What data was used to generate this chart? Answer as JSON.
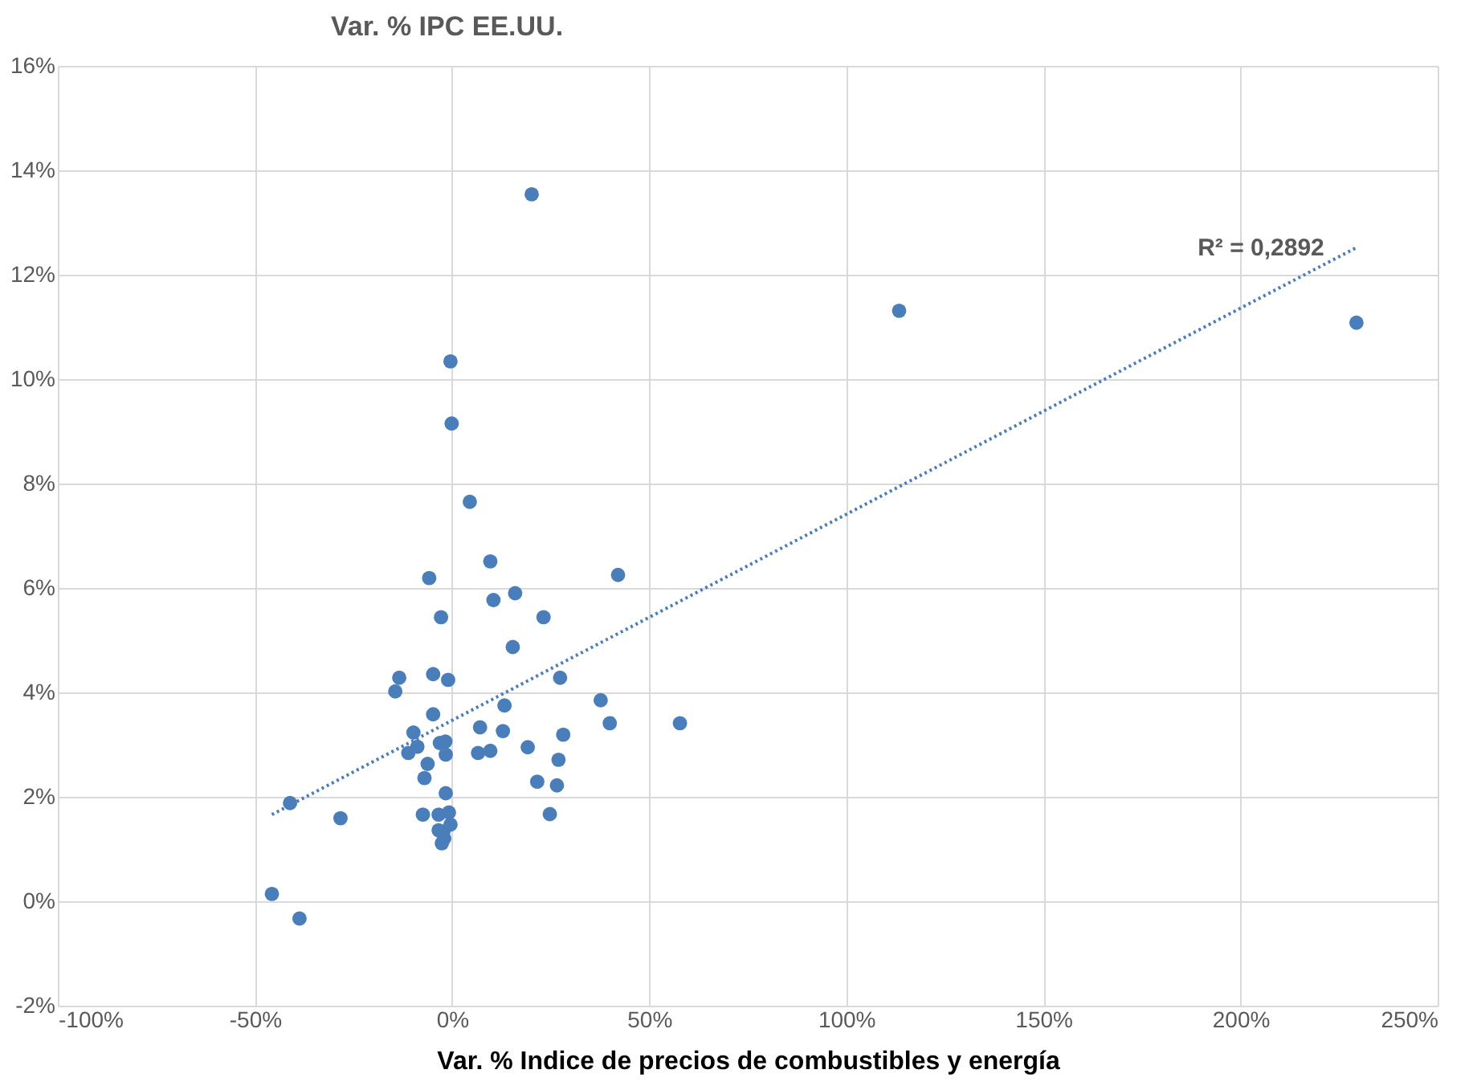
{
  "chart_data": {
    "type": "scatter",
    "title": "Var. % IPC EE.UU.",
    "xlabel": "Var. % Indice de precios de combustibles y energía",
    "xlim": [
      -100,
      250
    ],
    "xticks": [
      {
        "value": -100,
        "label": "-100%"
      },
      {
        "value": -50,
        "label": "-50%"
      },
      {
        "value": 0,
        "label": "0%"
      },
      {
        "value": 50,
        "label": "50%"
      },
      {
        "value": 100,
        "label": "100%"
      },
      {
        "value": 150,
        "label": "150%"
      },
      {
        "value": 200,
        "label": "200%"
      },
      {
        "value": 250,
        "label": "250%"
      }
    ],
    "ylim": [
      -2,
      16
    ],
    "yticks": [
      {
        "value": -2,
        "label": "-2%"
      },
      {
        "value": 0,
        "label": "0%"
      },
      {
        "value": 2,
        "label": "2%"
      },
      {
        "value": 4,
        "label": "4%"
      },
      {
        "value": 6,
        "label": "6%"
      },
      {
        "value": 8,
        "label": "8%"
      },
      {
        "value": 10,
        "label": "10%"
      },
      {
        "value": 12,
        "label": "12%"
      },
      {
        "value": 14,
        "label": "14%"
      },
      {
        "value": 16,
        "label": "16%"
      }
    ],
    "grid": true,
    "legend": false,
    "series": [
      {
        "color": "#4a7ebb",
        "marker": "circle",
        "x": [
          -5.8,
          9.7,
          42.1,
          10.5,
          16.0,
          23.2,
          -2.8,
          15.4,
          -13.4,
          -14.4,
          -4.8,
          -1.0,
          27.4,
          13.3,
          37.7,
          40.0,
          57.8,
          -4.8,
          -9.8,
          -8.8,
          -11.1,
          -3.1,
          -1.7,
          -1.6,
          7.1,
          12.9,
          28.2,
          6.6,
          9.7,
          19.2,
          27.0,
          -6.2,
          -7.0,
          21.6,
          26.6,
          -1.6,
          -7.4,
          24.8,
          -3.4,
          -0.8,
          -0.4,
          -3.4,
          -2.2,
          -2.6,
          -2.0,
          -28.3,
          -41.1,
          -45.7,
          -38.7,
          20.2,
          -0.4,
          -0.1,
          4.5,
          113.4,
          229.4
        ],
        "values": [
          6.19,
          6.51,
          6.25,
          5.77,
          5.9,
          5.44,
          5.44,
          4.87,
          4.28,
          4.02,
          4.35,
          4.24,
          4.28,
          3.75,
          3.85,
          3.41,
          3.41,
          3.58,
          3.23,
          2.96,
          2.84,
          3.03,
          3.06,
          2.81,
          3.33,
          3.26,
          3.19,
          2.84,
          2.88,
          2.95,
          2.71,
          2.63,
          2.36,
          2.29,
          2.22,
          2.07,
          1.66,
          1.67,
          1.66,
          1.7,
          1.47,
          1.36,
          1.33,
          1.11,
          1.2,
          1.59,
          1.88,
          0.14,
          -0.33,
          13.54,
          10.34,
          9.15,
          7.65,
          11.31,
          11.08
        ]
      },
      {
        "type": "line",
        "color": "#4a7ebb",
        "line_style": "dotted",
        "marker": "none",
        "x": [
          -45.7,
          229.4
        ],
        "values": [
          1.66,
          12.52
        ]
      }
    ],
    "annotations": [
      "R² = 0,2892"
    ]
  }
}
